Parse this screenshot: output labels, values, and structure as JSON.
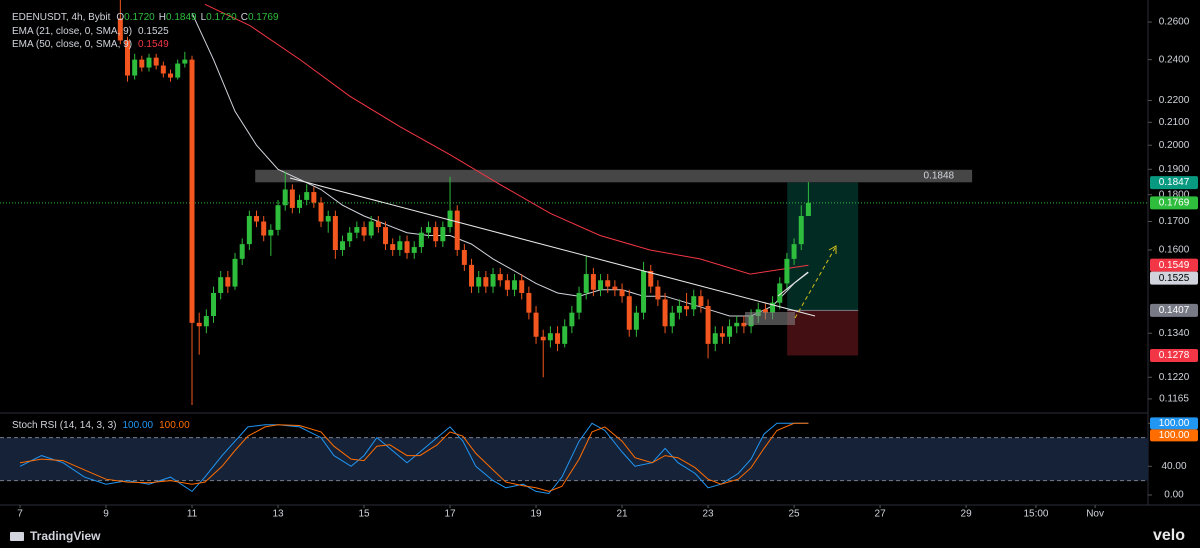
{
  "chart_data": [
    {
      "type": "candlestick",
      "title": "EDENUSDT, 4h, Bybit",
      "legend_items": [
        {
          "key": "O",
          "label": "0.1720"
        },
        {
          "key": "H",
          "label": "0.1849"
        },
        {
          "key": "L",
          "label": "0.1720"
        },
        {
          "key": "C",
          "label": "0.1769"
        }
      ],
      "up_color": "#2ebd3c",
      "down_color": "#f4561f",
      "log": true,
      "grid": false,
      "xlim": [
        6.535,
        33.23
      ],
      "xticks": [
        7,
        9,
        11,
        13,
        15,
        17,
        19,
        21,
        23,
        25,
        27,
        29,
        {
          "value": 30.625,
          "label": "15:00"
        },
        {
          "value": 32,
          "label": "Nov"
        }
      ],
      "ylim": [
        0.1133,
        0.2725
      ],
      "yticks": [
        {
          "value": 0.26,
          "label": "0.2600"
        },
        {
          "value": 0.24,
          "label": "0.2400"
        },
        {
          "value": 0.22,
          "label": "0.2200"
        },
        {
          "value": 0.21,
          "label": "0.2100"
        },
        {
          "value": 0.2,
          "label": "0.2000"
        },
        {
          "value": 0.19,
          "label": "0.1900"
        },
        {
          "value": 0.18,
          "label": "0.1800"
        },
        {
          "value": 0.17,
          "label": "0.1700"
        },
        {
          "value": 0.16,
          "label": "0.1600"
        },
        {
          "value": 0.134,
          "label": "0.1340"
        },
        {
          "value": 0.122,
          "label": "0.1220"
        },
        {
          "value": 0.1165,
          "label": "0.1165"
        }
      ],
      "x": [
        9.333,
        9.5,
        9.667,
        9.833,
        10,
        10.167,
        10.333,
        10.5,
        10.667,
        10.833,
        11,
        11.167,
        11.333,
        11.5,
        11.667,
        11.833,
        12,
        12.167,
        12.333,
        12.5,
        12.667,
        12.833,
        13,
        13.167,
        13.333,
        13.5,
        13.667,
        13.833,
        14,
        14.167,
        14.333,
        14.5,
        14.667,
        14.833,
        15,
        15.167,
        15.333,
        15.5,
        15.667,
        15.833,
        16,
        16.167,
        16.333,
        16.5,
        16.667,
        16.833,
        17,
        17.167,
        17.333,
        17.5,
        17.667,
        17.833,
        18,
        18.167,
        18.333,
        18.5,
        18.667,
        18.833,
        19,
        19.167,
        19.333,
        19.5,
        19.667,
        19.833,
        20,
        20.167,
        20.333,
        20.5,
        20.667,
        20.833,
        21,
        21.167,
        21.333,
        21.5,
        21.667,
        21.833,
        22,
        22.167,
        22.333,
        22.5,
        22.667,
        22.833,
        23,
        23.167,
        23.333,
        23.5,
        23.667,
        23.833,
        24,
        24.167,
        24.333,
        24.5,
        24.667,
        24.833,
        25,
        25.167,
        25.333
      ],
      "ohlc": [
        [
          0.262,
          0.275,
          0.248,
          0.25
        ],
        [
          0.25,
          0.252,
          0.229,
          0.232
        ],
        [
          0.232,
          0.243,
          0.23,
          0.24
        ],
        [
          0.24,
          0.242,
          0.234,
          0.236
        ],
        [
          0.236,
          0.243,
          0.234,
          0.241
        ],
        [
          0.241,
          0.243,
          0.235,
          0.237
        ],
        [
          0.237,
          0.239,
          0.231,
          0.233
        ],
        [
          0.233,
          0.235,
          0.229,
          0.231
        ],
        [
          0.231,
          0.24,
          0.23,
          0.238
        ],
        [
          0.238,
          0.244,
          0.236,
          0.24
        ],
        [
          0.24,
          0.242,
          0.115,
          0.137
        ],
        [
          0.137,
          0.14,
          0.128,
          0.136
        ],
        [
          0.136,
          0.141,
          0.134,
          0.139
        ],
        [
          0.139,
          0.148,
          0.137,
          0.146
        ],
        [
          0.146,
          0.153,
          0.144,
          0.151
        ],
        [
          0.151,
          0.153,
          0.146,
          0.148
        ],
        [
          0.148,
          0.159,
          0.147,
          0.157
        ],
        [
          0.157,
          0.164,
          0.155,
          0.162
        ],
        [
          0.162,
          0.174,
          0.16,
          0.172
        ],
        [
          0.172,
          0.174,
          0.168,
          0.17
        ],
        [
          0.17,
          0.172,
          0.163,
          0.165
        ],
        [
          0.165,
          0.169,
          0.158,
          0.167
        ],
        [
          0.167,
          0.178,
          0.165,
          0.176
        ],
        [
          0.176,
          0.189,
          0.174,
          0.182
        ],
        [
          0.182,
          0.184,
          0.173,
          0.175
        ],
        [
          0.175,
          0.18,
          0.173,
          0.178
        ],
        [
          0.178,
          0.184,
          0.176,
          0.181
        ],
        [
          0.181,
          0.183,
          0.175,
          0.177
        ],
        [
          0.177,
          0.179,
          0.168,
          0.17
        ],
        [
          0.17,
          0.174,
          0.166,
          0.172
        ],
        [
          0.172,
          0.174,
          0.157,
          0.16
        ],
        [
          0.16,
          0.165,
          0.158,
          0.163
        ],
        [
          0.163,
          0.168,
          0.161,
          0.166
        ],
        [
          0.166,
          0.17,
          0.164,
          0.168
        ],
        [
          0.168,
          0.17,
          0.163,
          0.165
        ],
        [
          0.165,
          0.172,
          0.164,
          0.17
        ],
        [
          0.17,
          0.172,
          0.166,
          0.168
        ],
        [
          0.168,
          0.17,
          0.16,
          0.162
        ],
        [
          0.162,
          0.164,
          0.158,
          0.16
        ],
        [
          0.16,
          0.165,
          0.158,
          0.163
        ],
        [
          0.163,
          0.165,
          0.157,
          0.159
        ],
        [
          0.159,
          0.163,
          0.157,
          0.161
        ],
        [
          0.161,
          0.168,
          0.159,
          0.166
        ],
        [
          0.166,
          0.17,
          0.164,
          0.168
        ],
        [
          0.168,
          0.17,
          0.161,
          0.163
        ],
        [
          0.163,
          0.17,
          0.161,
          0.168
        ],
        [
          0.168,
          0.187,
          0.166,
          0.174
        ],
        [
          0.174,
          0.176,
          0.158,
          0.16
        ],
        [
          0.16,
          0.162,
          0.153,
          0.155
        ],
        [
          0.155,
          0.157,
          0.146,
          0.148
        ],
        [
          0.148,
          0.153,
          0.146,
          0.151
        ],
        [
          0.151,
          0.153,
          0.146,
          0.148
        ],
        [
          0.148,
          0.154,
          0.146,
          0.152
        ],
        [
          0.152,
          0.154,
          0.148,
          0.15
        ],
        [
          0.15,
          0.152,
          0.145,
          0.147
        ],
        [
          0.147,
          0.152,
          0.145,
          0.15
        ],
        [
          0.15,
          0.152,
          0.144,
          0.146
        ],
        [
          0.146,
          0.148,
          0.138,
          0.14
        ],
        [
          0.14,
          0.142,
          0.131,
          0.133
        ],
        [
          0.133,
          0.135,
          0.122,
          0.132
        ],
        [
          0.132,
          0.136,
          0.13,
          0.134
        ],
        [
          0.134,
          0.136,
          0.129,
          0.131
        ],
        [
          0.131,
          0.138,
          0.13,
          0.136
        ],
        [
          0.136,
          0.142,
          0.134,
          0.14
        ],
        [
          0.14,
          0.148,
          0.138,
          0.146
        ],
        [
          0.146,
          0.158,
          0.144,
          0.152
        ],
        [
          0.152,
          0.154,
          0.145,
          0.147
        ],
        [
          0.147,
          0.152,
          0.145,
          0.15
        ],
        [
          0.15,
          0.152,
          0.146,
          0.148
        ],
        [
          0.148,
          0.15,
          0.145,
          0.147
        ],
        [
          0.147,
          0.149,
          0.143,
          0.145
        ],
        [
          0.145,
          0.147,
          0.133,
          0.135
        ],
        [
          0.135,
          0.142,
          0.133,
          0.14
        ],
        [
          0.14,
          0.156,
          0.138,
          0.153
        ],
        [
          0.153,
          0.155,
          0.146,
          0.148
        ],
        [
          0.148,
          0.15,
          0.142,
          0.144
        ],
        [
          0.144,
          0.146,
          0.134,
          0.136
        ],
        [
          0.136,
          0.142,
          0.134,
          0.14
        ],
        [
          0.14,
          0.144,
          0.138,
          0.142
        ],
        [
          0.142,
          0.146,
          0.139,
          0.141
        ],
        [
          0.141,
          0.147,
          0.139,
          0.145
        ],
        [
          0.145,
          0.147,
          0.14,
          0.142
        ],
        [
          0.142,
          0.144,
          0.127,
          0.131
        ],
        [
          0.131,
          0.136,
          0.129,
          0.134
        ],
        [
          0.134,
          0.136,
          0.131,
          0.133
        ],
        [
          0.133,
          0.138,
          0.131,
          0.136
        ],
        [
          0.136,
          0.139,
          0.134,
          0.137
        ],
        [
          0.137,
          0.139,
          0.134,
          0.136
        ],
        [
          0.136,
          0.141,
          0.134,
          0.139
        ],
        [
          0.139,
          0.143,
          0.137,
          0.141
        ],
        [
          0.141,
          0.143,
          0.138,
          0.14
        ],
        [
          0.14,
          0.145,
          0.138,
          0.143
        ],
        [
          0.143,
          0.151,
          0.141,
          0.149
        ],
        [
          0.149,
          0.159,
          0.147,
          0.157
        ],
        [
          0.157,
          0.164,
          0.155,
          0.162
        ],
        [
          0.162,
          0.176,
          0.16,
          0.172
        ],
        [
          0.172,
          0.1849,
          0.172,
          0.1769
        ]
      ],
      "series": [
        {
          "name": "EMA (21, close, 0, SMA, 9)",
          "color": "#d1d4dc",
          "x": [
            11,
            11.5,
            12,
            12.5,
            13,
            13.5,
            14,
            14.5,
            15,
            15.5,
            16,
            16.5,
            17,
            17.5,
            18,
            18.5,
            19,
            19.5,
            20,
            20.5,
            21,
            21.5,
            22,
            22.5,
            23,
            23.5,
            24,
            24.5,
            25,
            25.333
          ],
          "values": [
            0.265,
            0.24,
            0.215,
            0.2,
            0.19,
            0.186,
            0.182,
            0.176,
            0.172,
            0.169,
            0.166,
            0.165,
            0.165,
            0.162,
            0.157,
            0.153,
            0.149,
            0.146,
            0.145,
            0.147,
            0.147,
            0.145,
            0.145,
            0.143,
            0.141,
            0.139,
            0.139,
            0.142,
            0.149,
            0.1525
          ]
        },
        {
          "name": "EMA (50, close, 0, SMA, 9)",
          "color": "#f23645",
          "x": [
            11.3,
            12.35,
            13.51,
            14.67,
            15.84,
            17,
            18.16,
            19.33,
            20.49,
            21.65,
            22.81,
            23.98,
            25.333
          ],
          "values": [
            0.27,
            0.258,
            0.24,
            0.222,
            0.208,
            0.196,
            0.184,
            0.173,
            0.165,
            0.16,
            0.157,
            0.152,
            0.1549
          ]
        }
      ],
      "zone": {
        "low": 0.1848,
        "high": 0.1898,
        "start": 12.47,
        "end": 29.14,
        "color": "#5d5d5d"
      },
      "position": {
        "entry": 0.1407,
        "target": 0.1847,
        "stop": 0.1278,
        "start": 24.84,
        "end": 26.49,
        "target_color": "#089981",
        "stop_color": "#f23645",
        "entry_color": "#787b86"
      }
    },
    {
      "type": "line",
      "title": "Stoch RSI (14, 14, 3, 3)",
      "ylim": [
        -14,
        113
      ],
      "yticks": [
        {
          "value": 100,
          "label": "100.00"
        },
        {
          "value": 40,
          "label": "40.00"
        },
        {
          "value": 0,
          "label": "0.00"
        }
      ],
      "bands": [
        20,
        80
      ],
      "band_color": "#152238",
      "series": [
        {
          "color": "#2196f3",
          "last_value_label": "100.00",
          "x": [
            7,
            7.5,
            8,
            8.5,
            9,
            9.5,
            10,
            10.5,
            11,
            11.3,
            11.7,
            12,
            12.3,
            12.7,
            13,
            13.5,
            14,
            14.3,
            14.7,
            15,
            15.3,
            15.6,
            16,
            16.3,
            16.7,
            17,
            17.3,
            17.6,
            18,
            18.3,
            18.7,
            19,
            19.3,
            19.6,
            20,
            20.3,
            20.6,
            21,
            21.3,
            21.7,
            22,
            22.3,
            22.7,
            23,
            23.3,
            23.7,
            24,
            24.3,
            24.6,
            25,
            25.333
          ],
          "values": [
            40,
            55,
            45,
            25,
            15,
            20,
            15,
            25,
            5,
            25,
            55,
            75,
            95,
            98,
            98,
            95,
            80,
            55,
            40,
            55,
            80,
            65,
            45,
            60,
            80,
            95,
            75,
            40,
            20,
            10,
            15,
            5,
            2,
            25,
            75,
            100,
            90,
            60,
            40,
            45,
            65,
            45,
            30,
            10,
            15,
            30,
            50,
            85,
            100,
            100,
            100
          ]
        },
        {
          "color": "#ff6d00",
          "last_value_label": "100.00",
          "x": [
            7,
            7.5,
            8,
            8.5,
            9,
            9.5,
            10,
            10.5,
            11,
            11.3,
            11.7,
            12,
            12.3,
            12.7,
            13,
            13.5,
            14,
            14.3,
            14.7,
            15,
            15.3,
            15.6,
            16,
            16.3,
            16.7,
            17,
            17.3,
            17.6,
            18,
            18.3,
            18.7,
            19,
            19.3,
            19.6,
            20,
            20.3,
            20.6,
            21,
            21.3,
            21.7,
            22,
            22.3,
            22.7,
            23,
            23.3,
            23.7,
            24,
            24.3,
            24.6,
            25,
            25.333
          ],
          "values": [
            45,
            50,
            48,
            35,
            22,
            18,
            17,
            20,
            15,
            18,
            40,
            62,
            82,
            95,
            98,
            97,
            88,
            68,
            50,
            48,
            68,
            70,
            55,
            55,
            70,
            88,
            82,
            58,
            35,
            18,
            13,
            10,
            5,
            12,
            50,
            88,
            95,
            75,
            52,
            45,
            55,
            52,
            38,
            22,
            15,
            22,
            38,
            65,
            90,
            100,
            100
          ]
        }
      ]
    }
  ],
  "footer": {
    "brand": "TradingView",
    "watermark": "velo"
  }
}
